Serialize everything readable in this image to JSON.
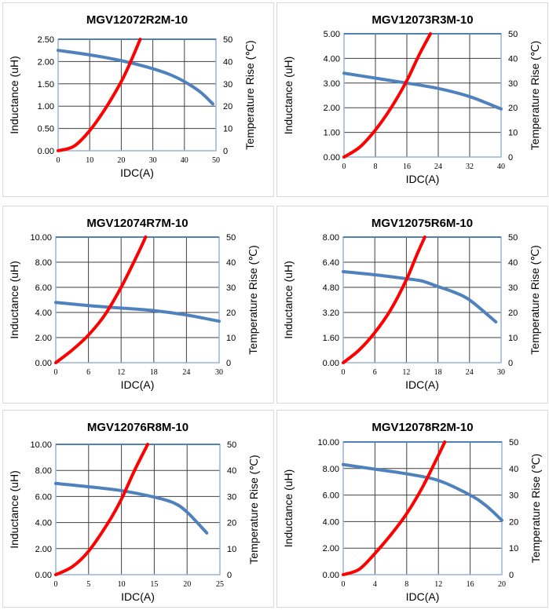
{
  "chart_data": [
    {
      "type": "line",
      "title": "MGV12072R2M-10",
      "xlabel": "IDC(A)",
      "ylabel": "Inductance (uH)",
      "y2label": "Temperature Rise (℃)",
      "xlim": [
        0,
        50
      ],
      "xticks": [
        "0",
        "10",
        "20",
        "30",
        "40",
        "50"
      ],
      "ylim": [
        0,
        2.5
      ],
      "yticks": [
        "0.00",
        "0.50",
        "1.00",
        "1.50",
        "2.00",
        "2.50"
      ],
      "y2lim": [
        0,
        50
      ],
      "y2ticks": [
        "0",
        "10",
        "20",
        "30",
        "40",
        "50"
      ],
      "grid": true,
      "series": [
        {
          "axis": "left",
          "color": "#4f81bd",
          "x": [
            0,
            10,
            20,
            28,
            35,
            40,
            45,
            49
          ],
          "y": [
            2.25,
            2.15,
            2.02,
            1.88,
            1.72,
            1.55,
            1.32,
            1.05
          ]
        },
        {
          "axis": "right",
          "color": "#ff0000",
          "x": [
            0,
            5,
            10,
            15,
            20,
            23,
            26
          ],
          "y": [
            0,
            2,
            9,
            19,
            31,
            40,
            50
          ]
        }
      ]
    },
    {
      "type": "line",
      "title": "MGV12073R3M-10",
      "xlabel": "IDC(A)",
      "ylabel": "Inductance (uH)",
      "y2label": "Temperature Rise (℃)",
      "xlim": [
        0,
        40
      ],
      "xticks": [
        "0",
        "8",
        "16",
        "24",
        "32",
        "40"
      ],
      "ylim": [
        0,
        5
      ],
      "yticks": [
        "0.00",
        "1.00",
        "2.00",
        "3.00",
        "4.00",
        "5.00"
      ],
      "y2lim": [
        0,
        50
      ],
      "y2ticks": [
        "0",
        "10",
        "20",
        "30",
        "40",
        "50"
      ],
      "grid": true,
      "series": [
        {
          "axis": "left",
          "color": "#4f81bd",
          "x": [
            0,
            8,
            16,
            24,
            32,
            40
          ],
          "y": [
            3.4,
            3.2,
            3.0,
            2.78,
            2.45,
            1.95
          ]
        },
        {
          "axis": "right",
          "color": "#ff0000",
          "x": [
            0,
            4,
            8,
            12,
            16,
            19,
            22
          ],
          "y": [
            0,
            4,
            11,
            20,
            31,
            41,
            50
          ]
        }
      ]
    },
    {
      "type": "line",
      "title": "MGV12074R7M-10",
      "xlabel": "IDC(A)",
      "ylabel": "Inductance (uH)",
      "y2label": "Temperature Rise (℃)",
      "xlim": [
        0,
        30
      ],
      "xticks": [
        "0",
        "6",
        "12",
        "18",
        "24",
        "30"
      ],
      "ylim": [
        0,
        10
      ],
      "yticks": [
        "0.00",
        "2.00",
        "4.00",
        "6.00",
        "8.00",
        "10.00"
      ],
      "y2lim": [
        0,
        50
      ],
      "y2ticks": [
        "0",
        "10",
        "20",
        "30",
        "40",
        "50"
      ],
      "grid": true,
      "series": [
        {
          "axis": "left",
          "color": "#4f81bd",
          "x": [
            0,
            6,
            12,
            18,
            24,
            30
          ],
          "y": [
            4.8,
            4.55,
            4.35,
            4.15,
            3.8,
            3.3
          ]
        },
        {
          "axis": "right",
          "color": "#ff0000",
          "x": [
            0,
            3,
            6,
            9,
            12,
            15,
            16.5
          ],
          "y": [
            0,
            5,
            11,
            19,
            30,
            43,
            50
          ]
        }
      ]
    },
    {
      "type": "line",
      "title": "MGV12075R6M-10",
      "xlabel": "IDC(A)",
      "ylabel": "Inductance (uH)",
      "y2label": "Temperature Rise (℃)",
      "xlim": [
        0,
        30
      ],
      "xticks": [
        "0",
        "6",
        "12",
        "18",
        "24",
        "30"
      ],
      "ylim": [
        0,
        8
      ],
      "yticks": [
        "0.00",
        "1.60",
        "3.20",
        "4.80",
        "6.40",
        "8.00"
      ],
      "y2lim": [
        0,
        50
      ],
      "y2ticks": [
        "0",
        "10",
        "20",
        "30",
        "40",
        "50"
      ],
      "grid": true,
      "series": [
        {
          "axis": "left",
          "color": "#4f81bd",
          "x": [
            0,
            6,
            12,
            15,
            18,
            21,
            24,
            29
          ],
          "y": [
            5.8,
            5.6,
            5.35,
            5.2,
            4.85,
            4.5,
            4.0,
            2.6
          ]
        },
        {
          "axis": "right",
          "color": "#ff0000",
          "x": [
            0,
            3,
            6,
            9,
            12,
            14,
            15.5
          ],
          "y": [
            0,
            5,
            12,
            21,
            33,
            43,
            50
          ]
        }
      ]
    },
    {
      "type": "line",
      "title": "MGV12076R8M-10",
      "xlabel": "IDC(A)",
      "ylabel": "Inductance (uH)",
      "y2label": "Temperature Rise (℃)",
      "xlim": [
        0,
        25
      ],
      "xticks": [
        "0",
        "5",
        "10",
        "15",
        "20",
        "25"
      ],
      "ylim": [
        0,
        10
      ],
      "yticks": [
        "0.00",
        "2.00",
        "4.00",
        "6.00",
        "8.00",
        "10.00"
      ],
      "y2lim": [
        0,
        50
      ],
      "y2ticks": [
        "0",
        "10",
        "20",
        "30",
        "40",
        "50"
      ],
      "grid": true,
      "series": [
        {
          "axis": "left",
          "color": "#4f81bd",
          "x": [
            0,
            5,
            10,
            15,
            18,
            20,
            23
          ],
          "y": [
            7,
            6.75,
            6.45,
            5.95,
            5.5,
            4.8,
            3.2
          ]
        },
        {
          "axis": "right",
          "color": "#ff0000",
          "x": [
            0,
            2.5,
            5,
            8,
            10,
            12,
            14
          ],
          "y": [
            0,
            3,
            9,
            20,
            29,
            40,
            50
          ]
        }
      ]
    },
    {
      "type": "line",
      "title": "MGV12078R2M-10",
      "xlabel": "IDC(A)",
      "ylabel": "Inductance (uH)",
      "y2label": "Temperature Rise (℃)",
      "xlim": [
        0,
        20
      ],
      "xticks": [
        "0",
        "4",
        "8",
        "12",
        "16",
        "20"
      ],
      "ylim": [
        0,
        10
      ],
      "yticks": [
        "0.00",
        "2.00",
        "4.00",
        "6.00",
        "8.00",
        "10.00"
      ],
      "y2lim": [
        0,
        50
      ],
      "y2ticks": [
        "0",
        "10",
        "20",
        "30",
        "40",
        "50"
      ],
      "grid": true,
      "series": [
        {
          "axis": "left",
          "color": "#4f81bd",
          "x": [
            0,
            4,
            8,
            12,
            16,
            18,
            20
          ],
          "y": [
            8.3,
            7.95,
            7.6,
            7.1,
            6.0,
            5.2,
            4.1
          ]
        },
        {
          "axis": "right",
          "color": "#ff0000",
          "x": [
            0,
            2,
            4,
            6,
            8,
            10,
            12,
            12.8
          ],
          "y": [
            0,
            2,
            8,
            15,
            23,
            33,
            45,
            50
          ]
        }
      ]
    }
  ]
}
